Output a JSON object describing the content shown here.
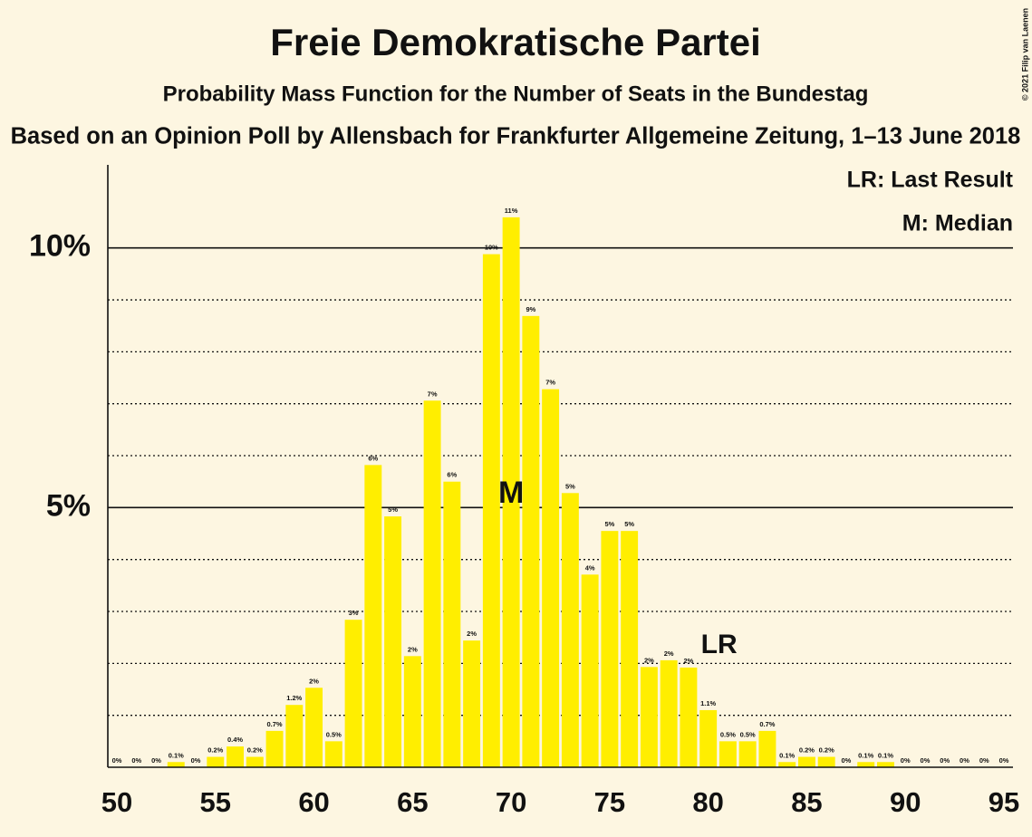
{
  "chart_data": {
    "type": "bar",
    "title": "Freie Demokratische Partei",
    "subtitle": "Probability Mass Function for the Number of Seats in the Bundestag",
    "source": "Based on an Opinion Poll by Allensbach for Frankfurter Allgemeine Zeitung, 1–13 June 2018",
    "copyright": "© 2021 Filip van Laenen",
    "legend": [
      "LR: Last Result",
      "M: Median"
    ],
    "last_result": {
      "x": 80,
      "label": "LR"
    },
    "median": {
      "x": 70,
      "label": "M"
    },
    "color": "#ffee00",
    "x": [
      50,
      51,
      52,
      53,
      54,
      55,
      56,
      57,
      58,
      59,
      60,
      61,
      62,
      63,
      64,
      65,
      66,
      67,
      68,
      69,
      70,
      71,
      72,
      73,
      74,
      75,
      76,
      77,
      78,
      79,
      80,
      81,
      82,
      83,
      84,
      85,
      86,
      87,
      88,
      89,
      90,
      91,
      92,
      93,
      94,
      95
    ],
    "values": [
      0,
      0,
      0,
      0.1,
      0,
      0.2,
      0.4,
      0.2,
      0.7,
      1.2,
      1.53,
      0.5,
      2.84,
      5.82,
      4.83,
      2.14,
      7.06,
      5.5,
      2.44,
      9.88,
      10.59,
      8.69,
      7.28,
      5.28,
      3.71,
      4.55,
      4.55,
      1.93,
      2.06,
      1.92,
      1.1,
      0.5,
      0.5,
      0.7,
      0.1,
      0.2,
      0.2,
      0,
      0.1,
      0.1,
      0,
      0,
      0,
      0,
      0,
      0
    ],
    "value_labels": [
      "0%",
      "0%",
      "0%",
      "0.1%",
      "0%",
      "0.2%",
      "0.4%",
      "0.2%",
      "0.7%",
      "1.2%",
      "2%",
      "0.5%",
      "3%",
      "6%",
      "5%",
      "2%",
      "7%",
      "6%",
      "2%",
      "10%",
      "11%",
      "9%",
      "7%",
      "5%",
      "4%",
      "5%",
      "5%",
      "2%",
      "2%",
      "2%",
      "1.1%",
      "0.5%",
      "0.5%",
      "0.7%",
      "0.1%",
      "0.2%",
      "0.2%",
      "0%",
      "0.1%",
      "0.1%",
      "0%",
      "0%",
      "0%",
      "0%",
      "0%",
      "0%"
    ],
    "xlim": [
      49.54,
      95.46
    ],
    "xticks": [
      50,
      55,
      60,
      65,
      70,
      75,
      80,
      85,
      90,
      95
    ],
    "ylim": [
      0,
      11.6
    ],
    "yticks": [
      {
        "value": 5,
        "label": "5%"
      },
      {
        "value": 10,
        "label": "10%"
      }
    ],
    "minor_yticks": [
      1,
      2,
      3,
      4,
      6,
      7,
      8,
      9
    ]
  }
}
